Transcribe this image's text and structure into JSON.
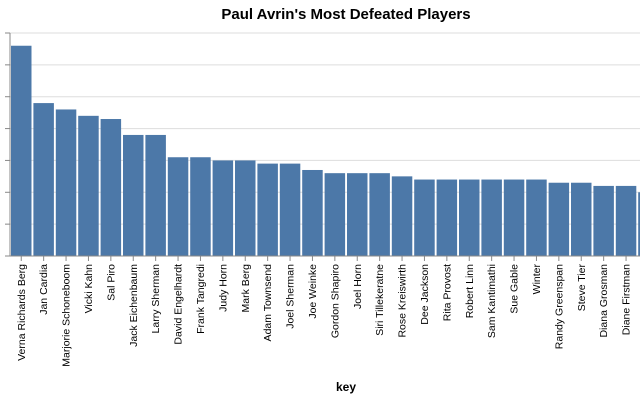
{
  "chart_data": {
    "type": "bar",
    "title": "Paul Avrin's Most Defeated Players",
    "xlabel": "key",
    "ylabel": "",
    "ylim": [
      0,
      7
    ],
    "grid": true,
    "bar_color": "#4c78a8",
    "categories": [
      "Verna Richards Berg",
      "Jan Cardia",
      "Marjorie Schoneboom",
      "Vicki Kahn",
      "Sal Piro",
      "Jack Eichenbaum",
      "Larry Sherman",
      "David Engelhardt",
      "Frank Tangredi",
      "Judy Horn",
      "Mark Berg",
      "Adam Townsend",
      "Joel Sherman",
      "Joe Weinke",
      "Gordon Shapiro",
      "Joel Horn",
      "Siri Tillekeratne",
      "Rose Kreiswirth",
      "Dee Jackson",
      "Rita Provost",
      "Robert Linn",
      "Sam Kantimathi",
      "Sue Gable",
      "Winter",
      "Randy Greenspan",
      "Steve Tier",
      "Diana Grosman",
      "Diane Firstman",
      ""
    ],
    "values": [
      6.6,
      4.8,
      4.6,
      4.4,
      4.3,
      3.8,
      3.8,
      3.1,
      3.1,
      3.0,
      3.0,
      2.9,
      2.9,
      2.7,
      2.6,
      2.6,
      2.6,
      2.5,
      2.4,
      2.4,
      2.4,
      2.4,
      2.4,
      2.4,
      2.3,
      2.3,
      2.2,
      2.2,
      2.0
    ]
  }
}
